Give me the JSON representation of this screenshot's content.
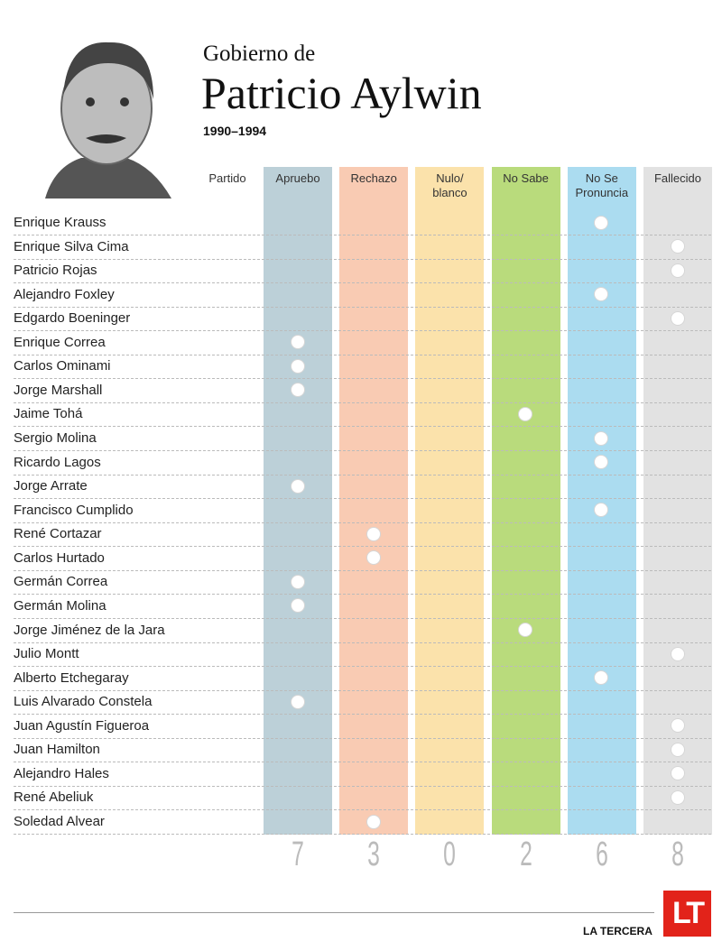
{
  "header": {
    "kicker": "Gobierno de",
    "title": "Patricio Aylwin",
    "years": "1990–1994"
  },
  "table": {
    "party_header": "Partido",
    "columns": [
      {
        "label": "Apruebo",
        "color": "#bcd0d8",
        "total": "7"
      },
      {
        "label": "Rechazo",
        "color": "#f9cbb3",
        "total": "3"
      },
      {
        "label": "Nulo/\nblanco",
        "color": "#fbe2ab",
        "total": "0"
      },
      {
        "label": "No Sabe",
        "color": "#b9db7c",
        "total": "2"
      },
      {
        "label": "No Se\nPronuncia",
        "color": "#abdcf0",
        "total": "6"
      },
      {
        "label": "Fallecido",
        "color": "#e2e2e2",
        "total": "8"
      }
    ],
    "rows": [
      {
        "name": "Enrique Krauss",
        "vote": "No Se\nPronuncia"
      },
      {
        "name": "Enrique Silva Cima",
        "vote": "Fallecido"
      },
      {
        "name": "Patricio Rojas",
        "vote": "Fallecido"
      },
      {
        "name": "Alejandro Foxley",
        "vote": "No Se\nPronuncia"
      },
      {
        "name": "Edgardo Boeninger",
        "vote": "Fallecido"
      },
      {
        "name": "Enrique Correa",
        "vote": "Apruebo"
      },
      {
        "name": "Carlos Ominami",
        "vote": "Apruebo"
      },
      {
        "name": "Jorge Marshall",
        "vote": "Apruebo"
      },
      {
        "name": "Jaime Tohá",
        "vote": "No Sabe"
      },
      {
        "name": "Sergio Molina",
        "vote": "No Se\nPronuncia"
      },
      {
        "name": "Ricardo Lagos",
        "vote": "No Se\nPronuncia"
      },
      {
        "name": "Jorge Arrate",
        "vote": "Apruebo"
      },
      {
        "name": "Francisco Cumplido",
        "vote": "No Se\nPronuncia"
      },
      {
        "name": "René Cortazar",
        "vote": "Rechazo"
      },
      {
        "name": "Carlos Hurtado",
        "vote": "Rechazo"
      },
      {
        "name": "Germán Correa",
        "vote": "Apruebo"
      },
      {
        "name": "Germán Molina",
        "vote": "Apruebo"
      },
      {
        "name": "Jorge Jiménez de la Jara",
        "vote": "No Sabe"
      },
      {
        "name": "Julio Montt",
        "vote": "Fallecido"
      },
      {
        "name": "Alberto Etchegaray",
        "vote": "No Se\nPronuncia"
      },
      {
        "name": "Luis Alvarado Constela",
        "vote": "Apruebo"
      },
      {
        "name": "Juan Agustín Figueroa",
        "vote": "Fallecido"
      },
      {
        "name": "Juan Hamilton",
        "vote": "Fallecido"
      },
      {
        "name": "Alejandro Hales",
        "vote": "Fallecido"
      },
      {
        "name": "René Abeliuk",
        "vote": "Fallecido"
      },
      {
        "name": "Soledad Alvear",
        "vote": "Rechazo"
      }
    ]
  },
  "footer": {
    "logo": "LT",
    "brand": "LA TERCERA"
  }
}
